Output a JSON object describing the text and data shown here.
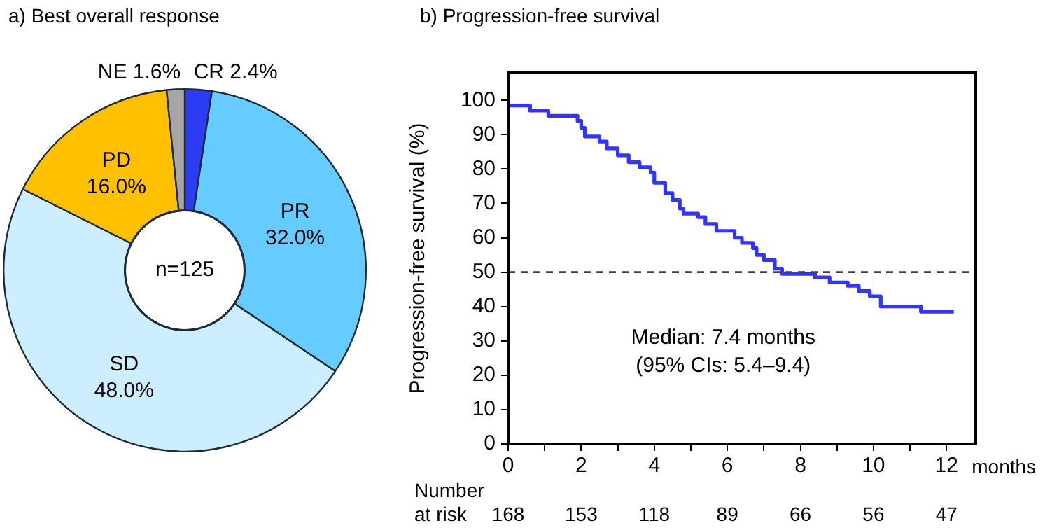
{
  "chart_data": [
    {
      "type": "donut",
      "title": "a) Best overall response",
      "categories": [
        "CR",
        "PR",
        "SD",
        "PD",
        "NE"
      ],
      "values": [
        2.4,
        32.0,
        48.0,
        16.0,
        1.6
      ],
      "colors": [
        "#2b3cf2",
        "#66ccff",
        "#cdeeff",
        "#ffc000",
        "#a6a6a6"
      ],
      "value_labels": [
        "2.4%",
        "32.0%",
        "48.0%",
        "16.0%",
        "1.6%"
      ],
      "annotations": [
        "n=125"
      ],
      "legend": false
    },
    {
      "type": "step",
      "title": "b) Progression-free survival",
      "ylabel": "Progression-free survival (%)",
      "xlabel": "months",
      "x": [
        0,
        0.6,
        1.1,
        1.9,
        2.0,
        2.1,
        2.5,
        2.7,
        3.0,
        3.3,
        3.6,
        3.9,
        4.0,
        4.3,
        4.5,
        4.7,
        4.8,
        5.2,
        5.4,
        5.7,
        6.2,
        6.4,
        6.7,
        6.8,
        7.0,
        7.3,
        7.5,
        8.4,
        8.8,
        9.3,
        9.6,
        9.9,
        10.2,
        11.3,
        12.2
      ],
      "series": [
        {
          "color": "#3333ff",
          "values": [
            98.5,
            97,
            95.5,
            94,
            92,
            89.5,
            88,
            86,
            84,
            82,
            80.5,
            79,
            76,
            73,
            71,
            68.5,
            67,
            66,
            64,
            62,
            60,
            58.5,
            57,
            55,
            53.5,
            51,
            49.5,
            48.5,
            47,
            46,
            44.5,
            43,
            40,
            38.5,
            38.5
          ]
        }
      ],
      "xlim": [
        0,
        12.8
      ],
      "xticks": [
        0,
        {
          "value": 1,
          "label": null
        },
        2,
        {
          "value": 3,
          "label": null
        },
        4,
        {
          "value": 5,
          "label": null
        },
        6,
        {
          "value": 7,
          "label": null
        },
        8,
        {
          "value": 9,
          "label": null
        },
        10,
        {
          "value": 11,
          "label": null
        },
        12
      ],
      "ylim": [
        0,
        108
      ],
      "yticks": [
        0,
        10,
        20,
        30,
        40,
        50,
        60,
        70,
        80,
        90,
        100
      ],
      "ref_lines": [
        {
          "axis": "y",
          "value": 50,
          "color": "#404040",
          "line_style": "dashed"
        }
      ],
      "marker": "none",
      "line_style": "solid",
      "grid": false,
      "legend": false,
      "annotations": [
        "Median: 7.4 months",
        "(95% CIs: 5.4–9.4)",
        "Number\nat risk",
        "168",
        "153",
        "118",
        "89",
        "66",
        "56",
        "47"
      ]
    }
  ]
}
